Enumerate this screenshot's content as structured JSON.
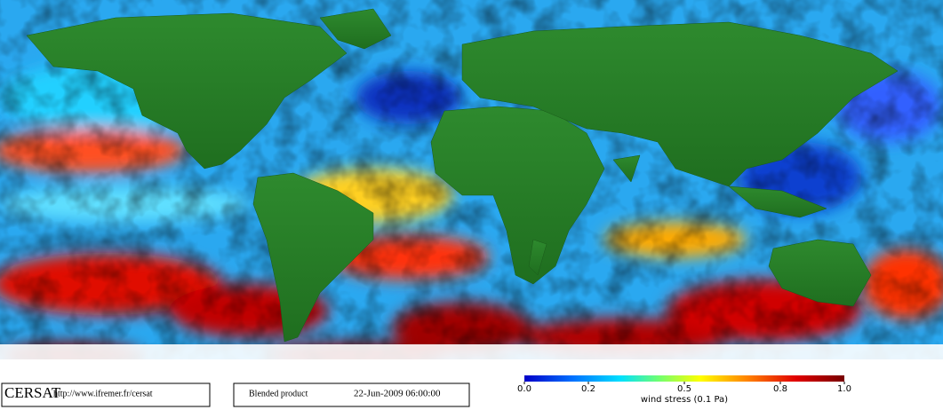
{
  "logo": "CERSAT",
  "url": "http://www.ifremer.fr/cersat",
  "product": "Blended product",
  "timestamp": "22-Jun-2009 06:00:00",
  "colorbar": {
    "title": "wind stress (0.1 Pa)",
    "lim": [
      0,
      1
    ],
    "ticks": [
      {
        "value": 0,
        "label": "0.0"
      },
      {
        "value": 0.2,
        "label": "0.2"
      },
      {
        "value": 0.5,
        "label": "0.5"
      },
      {
        "value": 0.8,
        "label": "0.8"
      },
      {
        "value": 1,
        "label": "1.0"
      }
    ]
  }
}
